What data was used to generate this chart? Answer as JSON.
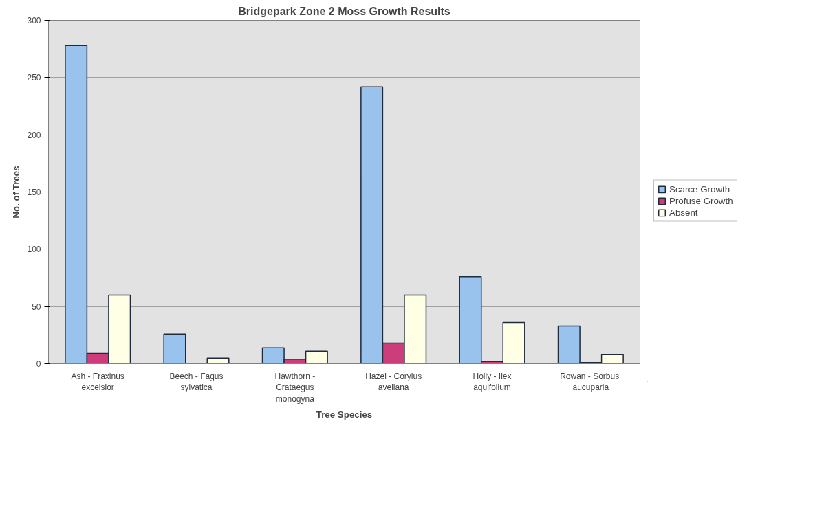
{
  "chart_data": {
    "type": "bar",
    "title": "Bridgepark Zone 2 Moss Growth Results",
    "xlabel": "Tree Species",
    "ylabel": "No. of Trees",
    "categories": [
      "Ash - Fraxinus\nexcelsior",
      "Beech - Fagus\nsylvatica",
      "Hawthorn -\nCrataegus\nmonogyna",
      "Hazel - Corylus\navellana",
      "Holly - Ilex\naquifolium",
      "Rowan -  Sorbus\naucuparia"
    ],
    "series": [
      {
        "name": "Scarce Growth",
        "color": "#99c2ec",
        "values": [
          278,
          26,
          14,
          242,
          76,
          33
        ]
      },
      {
        "name": "Profuse Growth",
        "color": "#cc3d7a",
        "values": [
          9,
          0,
          4,
          18,
          2,
          1
        ]
      },
      {
        "name": "Absent",
        "color": "#ffffe6",
        "values": [
          60,
          5,
          11,
          60,
          36,
          8
        ]
      }
    ],
    "ylim": [
      0,
      300
    ],
    "yticks": [
      0,
      50,
      100,
      150,
      200,
      250,
      300
    ],
    "grid": "y",
    "legend": "right"
  }
}
